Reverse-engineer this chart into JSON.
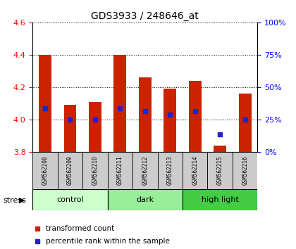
{
  "title": "GDS3933 / 248646_at",
  "samples": [
    "GSM562208",
    "GSM562209",
    "GSM562210",
    "GSM562211",
    "GSM562212",
    "GSM562213",
    "GSM562214",
    "GSM562215",
    "GSM562216"
  ],
  "red_values": [
    4.4,
    4.09,
    4.11,
    4.4,
    4.26,
    4.19,
    4.24,
    3.84,
    4.16
  ],
  "blue_values_y": [
    4.07,
    4.0,
    4.0,
    4.07,
    4.05,
    4.03,
    4.05,
    3.91,
    4.0
  ],
  "y_min": 3.8,
  "y_max": 4.6,
  "y_ticks": [
    3.8,
    4.0,
    4.2,
    4.4,
    4.6
  ],
  "right_y_ticks": [
    0,
    25,
    50,
    75,
    100
  ],
  "group_colors": [
    "#ccffcc",
    "#aaddaa",
    "#44cc44"
  ],
  "stress_label": "stress",
  "bar_color": "#cc2200",
  "blue_color": "#2222cc",
  "bar_width": 0.5,
  "label_red": "transformed count",
  "label_blue": "percentile rank within the sample"
}
